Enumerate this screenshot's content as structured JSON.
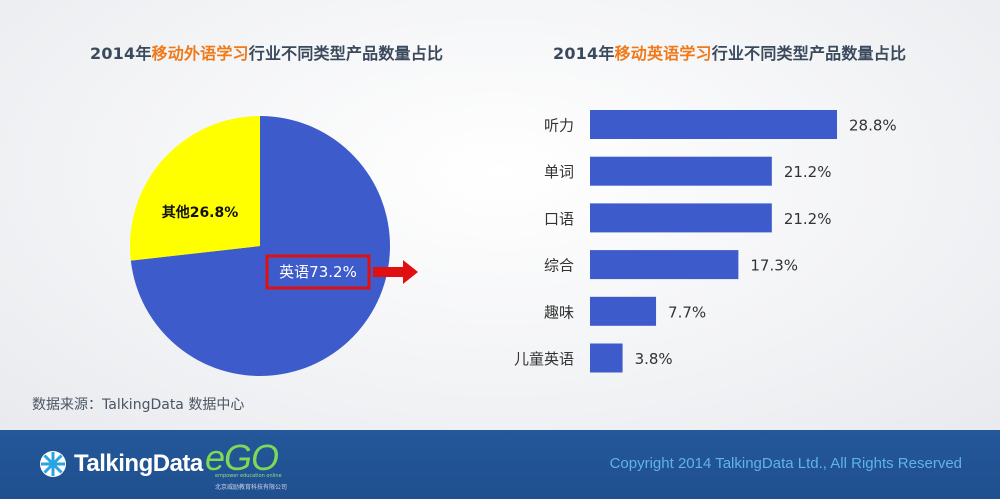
{
  "chart_data": [
    {
      "type": "pie",
      "title_parts": [
        "2014年",
        "移动外语学习",
        "行业不同类型产品数量占比"
      ],
      "slices": [
        {
          "label": "英语73.2%",
          "value": 73.2,
          "color": "#3e5bcc"
        },
        {
          "label": "其他26.8%",
          "value": 26.8,
          "color": "#ffff00"
        }
      ],
      "highlight": "英语73.2%"
    },
    {
      "type": "bar",
      "orientation": "horizontal",
      "title_parts": [
        "2014年",
        "移动英语学习",
        "行业不同类型产品数量占比"
      ],
      "categories": [
        "听力",
        "单词",
        "口语",
        "综合",
        "趣味",
        "儿童英语"
      ],
      "values": [
        28.8,
        21.2,
        21.2,
        17.3,
        7.7,
        3.8
      ],
      "labels": [
        "28.8%",
        "21.2%",
        "21.2%",
        "17.3%",
        "7.7%",
        "3.8%"
      ],
      "bar_color": "#3e5bcc"
    }
  ],
  "source": "数据来源：TalkingData 数据中心",
  "footer": {
    "brand": "TalkingData",
    "ego_word": "eGO",
    "ego_tagline": "empower education online",
    "ego_company": "北京威励教育科技有限公司",
    "copyright": "Copyright 2014 TalkingData Ltd., All Rights Reserved"
  },
  "colors": {
    "accent": "#f07a1a",
    "title": "#3a4a5c",
    "footer_bg": "#24589a",
    "copyright": "#5fb3e8",
    "highlight_box": "#e01010"
  }
}
